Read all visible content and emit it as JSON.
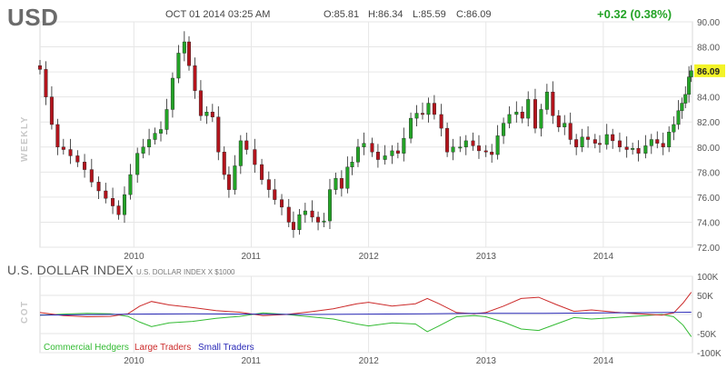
{
  "header": {
    "symbol": "USD",
    "timestamp": "OCT 01 2014 03:25 AM",
    "open": "O:85.81",
    "high": "H:86.34",
    "low": "L:85.59",
    "close": "C:86.09",
    "change": "+0.32 (0.38%)",
    "last_price": "86.09",
    "period_label": "WEEKLY"
  },
  "colors": {
    "up": "#23a326",
    "down": "#b3141c",
    "wick": "#222222",
    "commercial": "#33bb33",
    "large": "#cc2a2a",
    "small": "#2a2ab8",
    "price_highlight": "#f3f328"
  },
  "cot_section": {
    "title": "U.S. DOLLAR INDEX",
    "subtitle": "U.S. DOLLAR INDEX X $1000",
    "axis_label": "COT",
    "legend": {
      "commercial": "Commercial Hedgers",
      "large": "Large Traders",
      "small": "Small Traders"
    }
  },
  "chart_data": [
    {
      "type": "candlestick",
      "title": "",
      "ylim": [
        72,
        90
      ],
      "y_ticks": [
        "72.00",
        "74.00",
        "76.00",
        "78.00",
        "80.00",
        "82.00",
        "84.00",
        "86.00",
        "88.00",
        "90.00"
      ],
      "x_range": [
        2009.2,
        2014.76
      ],
      "x_ticks": [
        "2010",
        "2011",
        "2012",
        "2013",
        "2014"
      ],
      "grid": true,
      "closes": [
        {
          "x": 2009.2,
          "y": 86.2
        },
        {
          "x": 2009.25,
          "y": 84.0
        },
        {
          "x": 2009.3,
          "y": 81.8
        },
        {
          "x": 2009.35,
          "y": 80.0
        },
        {
          "x": 2009.4,
          "y": 79.8
        },
        {
          "x": 2009.46,
          "y": 79.3
        },
        {
          "x": 2009.52,
          "y": 78.8
        },
        {
          "x": 2009.58,
          "y": 78.2
        },
        {
          "x": 2009.64,
          "y": 77.2
        },
        {
          "x": 2009.7,
          "y": 76.5
        },
        {
          "x": 2009.76,
          "y": 75.9
        },
        {
          "x": 2009.82,
          "y": 75.3
        },
        {
          "x": 2009.87,
          "y": 74.6
        },
        {
          "x": 2009.92,
          "y": 76.2
        },
        {
          "x": 2009.97,
          "y": 77.8
        },
        {
          "x": 2010.03,
          "y": 79.5
        },
        {
          "x": 2010.08,
          "y": 80.0
        },
        {
          "x": 2010.13,
          "y": 80.6
        },
        {
          "x": 2010.18,
          "y": 81.1
        },
        {
          "x": 2010.23,
          "y": 81.4
        },
        {
          "x": 2010.28,
          "y": 83.0
        },
        {
          "x": 2010.33,
          "y": 85.5
        },
        {
          "x": 2010.38,
          "y": 87.5
        },
        {
          "x": 2010.43,
          "y": 88.4
        },
        {
          "x": 2010.47,
          "y": 86.5
        },
        {
          "x": 2010.52,
          "y": 84.5
        },
        {
          "x": 2010.57,
          "y": 82.5
        },
        {
          "x": 2010.62,
          "y": 82.8
        },
        {
          "x": 2010.67,
          "y": 82.4
        },
        {
          "x": 2010.72,
          "y": 79.6
        },
        {
          "x": 2010.77,
          "y": 77.8
        },
        {
          "x": 2010.81,
          "y": 76.6
        },
        {
          "x": 2010.86,
          "y": 78.5
        },
        {
          "x": 2010.91,
          "y": 80.5
        },
        {
          "x": 2010.96,
          "y": 79.8
        },
        {
          "x": 2011.03,
          "y": 78.6
        },
        {
          "x": 2011.09,
          "y": 77.4
        },
        {
          "x": 2011.15,
          "y": 76.6
        },
        {
          "x": 2011.2,
          "y": 75.8
        },
        {
          "x": 2011.26,
          "y": 75.2
        },
        {
          "x": 2011.32,
          "y": 74.0
        },
        {
          "x": 2011.36,
          "y": 73.4
        },
        {
          "x": 2011.41,
          "y": 74.6
        },
        {
          "x": 2011.46,
          "y": 74.9
        },
        {
          "x": 2011.52,
          "y": 74.4
        },
        {
          "x": 2011.57,
          "y": 74.0
        },
        {
          "x": 2011.62,
          "y": 74.1
        },
        {
          "x": 2011.67,
          "y": 76.6
        },
        {
          "x": 2011.72,
          "y": 77.5
        },
        {
          "x": 2011.77,
          "y": 76.7
        },
        {
          "x": 2011.82,
          "y": 78.4
        },
        {
          "x": 2011.86,
          "y": 78.8
        },
        {
          "x": 2011.91,
          "y": 80.0
        },
        {
          "x": 2011.96,
          "y": 80.3
        },
        {
          "x": 2012.03,
          "y": 79.6
        },
        {
          "x": 2012.08,
          "y": 79.0
        },
        {
          "x": 2012.14,
          "y": 79.3
        },
        {
          "x": 2012.2,
          "y": 79.7
        },
        {
          "x": 2012.25,
          "y": 79.5
        },
        {
          "x": 2012.3,
          "y": 80.7
        },
        {
          "x": 2012.36,
          "y": 82.3
        },
        {
          "x": 2012.41,
          "y": 82.7
        },
        {
          "x": 2012.46,
          "y": 82.6
        },
        {
          "x": 2012.51,
          "y": 83.5
        },
        {
          "x": 2012.56,
          "y": 82.6
        },
        {
          "x": 2012.62,
          "y": 81.5
        },
        {
          "x": 2012.67,
          "y": 79.6
        },
        {
          "x": 2012.72,
          "y": 80.0
        },
        {
          "x": 2012.78,
          "y": 80.0
        },
        {
          "x": 2012.83,
          "y": 80.5
        },
        {
          "x": 2012.89,
          "y": 80.1
        },
        {
          "x": 2012.94,
          "y": 79.7
        },
        {
          "x": 2013.0,
          "y": 79.6
        },
        {
          "x": 2013.05,
          "y": 79.4
        },
        {
          "x": 2013.1,
          "y": 80.9
        },
        {
          "x": 2013.15,
          "y": 81.9
        },
        {
          "x": 2013.2,
          "y": 82.6
        },
        {
          "x": 2013.26,
          "y": 82.8
        },
        {
          "x": 2013.31,
          "y": 82.3
        },
        {
          "x": 2013.36,
          "y": 83.8
        },
        {
          "x": 2013.42,
          "y": 81.5
        },
        {
          "x": 2013.47,
          "y": 83.0
        },
        {
          "x": 2013.52,
          "y": 84.4
        },
        {
          "x": 2013.57,
          "y": 82.5
        },
        {
          "x": 2013.62,
          "y": 81.6
        },
        {
          "x": 2013.67,
          "y": 81.9
        },
        {
          "x": 2013.72,
          "y": 80.6
        },
        {
          "x": 2013.77,
          "y": 80.0
        },
        {
          "x": 2013.82,
          "y": 80.8
        },
        {
          "x": 2013.87,
          "y": 80.6
        },
        {
          "x": 2013.93,
          "y": 80.3
        },
        {
          "x": 2013.97,
          "y": 80.2
        },
        {
          "x": 2014.03,
          "y": 81.0
        },
        {
          "x": 2014.08,
          "y": 80.5
        },
        {
          "x": 2014.14,
          "y": 80.0
        },
        {
          "x": 2014.2,
          "y": 79.8
        },
        {
          "x": 2014.25,
          "y": 79.9
        },
        {
          "x": 2014.3,
          "y": 79.5
        },
        {
          "x": 2014.36,
          "y": 80.1
        },
        {
          "x": 2014.41,
          "y": 80.6
        },
        {
          "x": 2014.46,
          "y": 80.3
        },
        {
          "x": 2014.51,
          "y": 80.0
        },
        {
          "x": 2014.56,
          "y": 81.2
        },
        {
          "x": 2014.6,
          "y": 81.8
        },
        {
          "x": 2014.64,
          "y": 82.9
        },
        {
          "x": 2014.67,
          "y": 83.5
        },
        {
          "x": 2014.7,
          "y": 84.2
        },
        {
          "x": 2014.73,
          "y": 85.6
        },
        {
          "x": 2014.75,
          "y": 86.09
        }
      ]
    },
    {
      "type": "line",
      "title": "",
      "ylim": [
        -100000,
        100000
      ],
      "y_ticks": [
        "-100K",
        "-50K",
        "0",
        "50K",
        "100K"
      ],
      "x_range": [
        2009.2,
        2014.76
      ],
      "x_ticks": [
        "2010",
        "2011",
        "2012",
        "2013",
        "2014"
      ],
      "grid": true,
      "series": [
        {
          "name": "Commercial Hedgers",
          "points": [
            {
              "x": 2009.2,
              "y": -2000
            },
            {
              "x": 2009.4,
              "y": 1000
            },
            {
              "x": 2009.6,
              "y": 3000
            },
            {
              "x": 2009.8,
              "y": 2000
            },
            {
              "x": 2009.95,
              "y": -5000
            },
            {
              "x": 2010.05,
              "y": -20000
            },
            {
              "x": 2010.15,
              "y": -32000
            },
            {
              "x": 2010.3,
              "y": -22000
            },
            {
              "x": 2010.5,
              "y": -18000
            },
            {
              "x": 2010.7,
              "y": -10000
            },
            {
              "x": 2010.9,
              "y": -5000
            },
            {
              "x": 2011.1,
              "y": 4000
            },
            {
              "x": 2011.3,
              "y": 0
            },
            {
              "x": 2011.5,
              "y": -6000
            },
            {
              "x": 2011.7,
              "y": -12000
            },
            {
              "x": 2011.9,
              "y": -25000
            },
            {
              "x": 2012.0,
              "y": -30000
            },
            {
              "x": 2012.2,
              "y": -22000
            },
            {
              "x": 2012.4,
              "y": -25000
            },
            {
              "x": 2012.5,
              "y": -45000
            },
            {
              "x": 2012.6,
              "y": -30000
            },
            {
              "x": 2012.75,
              "y": -6000
            },
            {
              "x": 2012.9,
              "y": -3000
            },
            {
              "x": 2013.0,
              "y": -6000
            },
            {
              "x": 2013.15,
              "y": -20000
            },
            {
              "x": 2013.3,
              "y": -38000
            },
            {
              "x": 2013.45,
              "y": -42000
            },
            {
              "x": 2013.6,
              "y": -25000
            },
            {
              "x": 2013.75,
              "y": -8000
            },
            {
              "x": 2013.9,
              "y": -12000
            },
            {
              "x": 2014.1,
              "y": -8000
            },
            {
              "x": 2014.3,
              "y": -4000
            },
            {
              "x": 2014.5,
              "y": 0
            },
            {
              "x": 2014.6,
              "y": -6000
            },
            {
              "x": 2014.68,
              "y": -28000
            },
            {
              "x": 2014.75,
              "y": -58000
            }
          ]
        },
        {
          "name": "Large Traders",
          "points": [
            {
              "x": 2009.2,
              "y": 5000
            },
            {
              "x": 2009.4,
              "y": -3000
            },
            {
              "x": 2009.6,
              "y": -6000
            },
            {
              "x": 2009.8,
              "y": -5000
            },
            {
              "x": 2009.95,
              "y": 2000
            },
            {
              "x": 2010.05,
              "y": 22000
            },
            {
              "x": 2010.15,
              "y": 34000
            },
            {
              "x": 2010.3,
              "y": 25000
            },
            {
              "x": 2010.5,
              "y": 18000
            },
            {
              "x": 2010.7,
              "y": 10000
            },
            {
              "x": 2010.9,
              "y": 6000
            },
            {
              "x": 2011.1,
              "y": -3000
            },
            {
              "x": 2011.3,
              "y": 0
            },
            {
              "x": 2011.5,
              "y": 7000
            },
            {
              "x": 2011.7,
              "y": 15000
            },
            {
              "x": 2011.9,
              "y": 28000
            },
            {
              "x": 2012.0,
              "y": 32000
            },
            {
              "x": 2012.2,
              "y": 22000
            },
            {
              "x": 2012.4,
              "y": 28000
            },
            {
              "x": 2012.5,
              "y": 42000
            },
            {
              "x": 2012.6,
              "y": 28000
            },
            {
              "x": 2012.75,
              "y": 5000
            },
            {
              "x": 2012.9,
              "y": 2000
            },
            {
              "x": 2013.0,
              "y": 5000
            },
            {
              "x": 2013.15,
              "y": 22000
            },
            {
              "x": 2013.3,
              "y": 42000
            },
            {
              "x": 2013.45,
              "y": 45000
            },
            {
              "x": 2013.6,
              "y": 26000
            },
            {
              "x": 2013.75,
              "y": 8000
            },
            {
              "x": 2013.9,
              "y": 12000
            },
            {
              "x": 2014.1,
              "y": 6000
            },
            {
              "x": 2014.3,
              "y": 2000
            },
            {
              "x": 2014.5,
              "y": -2000
            },
            {
              "x": 2014.6,
              "y": 4000
            },
            {
              "x": 2014.68,
              "y": 30000
            },
            {
              "x": 2014.75,
              "y": 58000
            }
          ]
        },
        {
          "name": "Small Traders",
          "points": [
            {
              "x": 2009.2,
              "y": -2000
            },
            {
              "x": 2010.0,
              "y": 1000
            },
            {
              "x": 2010.5,
              "y": 2000
            },
            {
              "x": 2011.0,
              "y": 1000
            },
            {
              "x": 2011.5,
              "y": 0
            },
            {
              "x": 2012.0,
              "y": 1000
            },
            {
              "x": 2012.5,
              "y": 2000
            },
            {
              "x": 2013.0,
              "y": 3000
            },
            {
              "x": 2013.5,
              "y": 3000
            },
            {
              "x": 2014.0,
              "y": 4000
            },
            {
              "x": 2014.5,
              "y": 5000
            },
            {
              "x": 2014.75,
              "y": 6000
            }
          ]
        }
      ]
    }
  ]
}
